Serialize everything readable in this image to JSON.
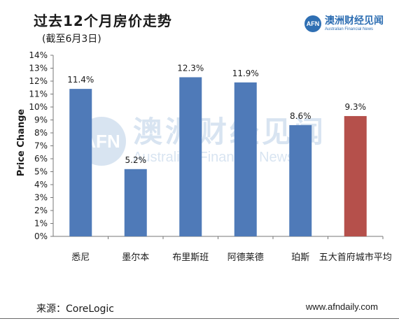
{
  "header": {
    "title": "过去12个月房价走势",
    "subtitle": "(截至6月3日)"
  },
  "brand": {
    "logo_text": "AFN",
    "name_cn": "澳洲财经见闻",
    "name_en": "Australian Financial News"
  },
  "watermark": {
    "logo_text": "AFN",
    "name_cn": "澳洲财经见闻",
    "name_en": "Australian Financial News"
  },
  "footer": {
    "source": "来源：CoreLogic",
    "website": "www.afndaily.com"
  },
  "colors": {
    "bar_primary": "#4f7ab8",
    "bar_highlight": "#b5504b",
    "axis": "#777777",
    "brand": "#2f6fb3"
  },
  "chart_data": {
    "type": "bar",
    "ylabel": "Price Change",
    "xlabel": "",
    "ylim": [
      0,
      14
    ],
    "y_ticks": [
      "0%",
      "1%",
      "2%",
      "3%",
      "4%",
      "5%",
      "6%",
      "7%",
      "8%",
      "9%",
      "10%",
      "11%",
      "12%",
      "13%",
      "14%"
    ],
    "categories": [
      "悉尼",
      "墨尔本",
      "布里斯班",
      "阿德莱德",
      "珀斯",
      "五大首府城市平均"
    ],
    "values": [
      11.4,
      5.2,
      12.3,
      11.9,
      8.6,
      9.3
    ],
    "value_labels": [
      "11.4%",
      "5.2%",
      "12.3%",
      "11.9%",
      "8.6%",
      "9.3%"
    ],
    "highlight_index": 5,
    "grid": false,
    "legend": "none"
  }
}
